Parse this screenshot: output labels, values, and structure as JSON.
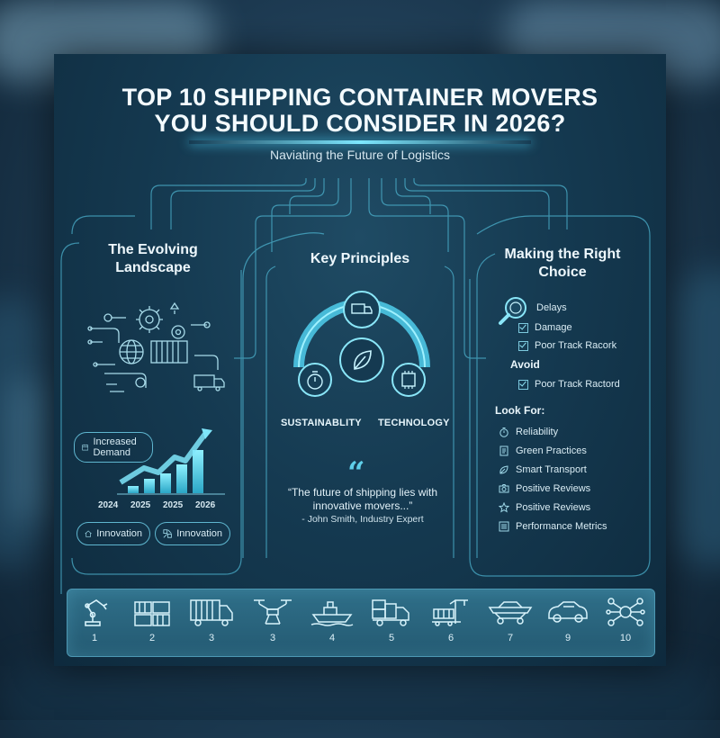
{
  "header": {
    "title_line1": "TOP 10 SHIPPING CONTAINER MOVERS",
    "title_line2": "YOU SHOULD CONSIDER IN 2026?",
    "subtitle": "Naviating the Future of Logistics"
  },
  "left": {
    "heading": "The Evolving Landscape",
    "demand_badge": "Increased Demand",
    "years": [
      "2024",
      "2025",
      "2025",
      "2026"
    ],
    "innovation_badges": [
      "Innovation",
      "Innovation"
    ]
  },
  "center": {
    "heading": "Key Principles",
    "labels": [
      "SUSTAINABLITY",
      "TECHNOLOGY"
    ],
    "quote_mark": "“",
    "quote": "“The future of shipping lies with innovative movers...”",
    "attribution": "- John Smith, Industry Expert"
  },
  "right": {
    "heading": "Making the Right Choice",
    "checklist": [
      "Delays",
      "Damage",
      "Poor Track Racork"
    ],
    "avoid_label": "Avoid",
    "avoid_items": [
      "Poor Track Ractord"
    ],
    "look_for_label": "Look For:",
    "look_for_items": [
      {
        "icon": "stopwatch-icon",
        "label": "Reliability"
      },
      {
        "icon": "document-icon",
        "label": "Green Practices"
      },
      {
        "icon": "leaf-icon",
        "label": "Smart Transport"
      },
      {
        "icon": "camera-icon",
        "label": "Positive Reviews"
      },
      {
        "icon": "star-icon",
        "label": "Positive Reviews"
      },
      {
        "icon": "list-icon",
        "label": "Performance Metrics"
      }
    ]
  },
  "band": {
    "items": [
      {
        "icon": "robot-arm-icon",
        "number": "1"
      },
      {
        "icon": "container-stack-icon",
        "number": "2"
      },
      {
        "icon": "truck-icon",
        "number": "3"
      },
      {
        "icon": "drone-icon",
        "number": "3"
      },
      {
        "icon": "ship-icon",
        "number": "4"
      },
      {
        "icon": "container-truck-icon",
        "number": "5"
      },
      {
        "icon": "crane-icon",
        "number": "6"
      },
      {
        "icon": "flatbed-railcar-icon",
        "number": "7"
      },
      {
        "icon": "autonomous-car-icon",
        "number": "9"
      },
      {
        "icon": "network-hub-icon",
        "number": "10"
      }
    ]
  },
  "colors": {
    "accent": "#5fd0ea",
    "panel": "#153a51",
    "band": "#2a6580"
  }
}
